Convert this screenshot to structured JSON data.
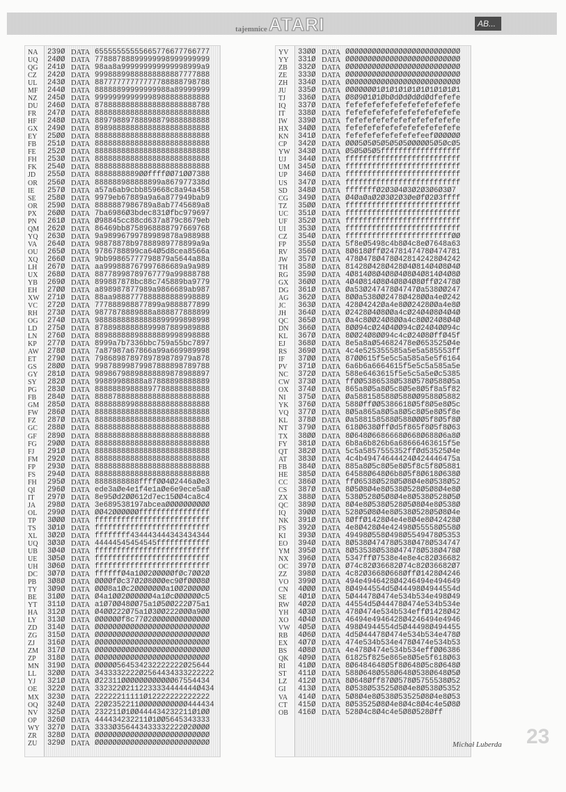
{
  "header": {
    "logo_small": "tajemnice",
    "logo_big": "ATARI",
    "badge": "AB..."
  },
  "keyword": "DATA",
  "footer": {
    "author": "Michał Luberda",
    "page_number": "23"
  },
  "listing": {
    "left": [
      [
        "NA",
        "239Ø",
        "65555555555665776677766777"
      ],
      [
        "UQ",
        "24ØØ",
        "77888788899999998999999999"
      ],
      [
        "QG",
        "241Ø",
        "98aa8a999999999999998999a9"
      ],
      [
        "CZ",
        "242Ø",
        "99988899888888888887777888"
      ],
      [
        "UL",
        "243Ø",
        "88777777777777788888798788"
      ],
      [
        "MF",
        "244Ø",
        "88888899999999988a89999999"
      ],
      [
        "NZ",
        "245Ø",
        "99999999999998988888888888"
      ],
      [
        "DU",
        "246Ø",
        "87888888888888888888888788"
      ],
      [
        "FR",
        "247Ø",
        "88888888888888888888888888"
      ],
      [
        "HF",
        "248Ø",
        "88979889788898879888888888"
      ],
      [
        "GX",
        "249Ø",
        "89898888888888888888888888"
      ],
      [
        "EY",
        "25ØØ",
        "88888888888888888888888888"
      ],
      [
        "FB",
        "251Ø",
        "88888888888888888888888888"
      ],
      [
        "FE",
        "252Ø",
        "88888888888888888888888888"
      ],
      [
        "FH",
        "253Ø",
        "88888888888888888888888888"
      ],
      [
        "FK",
        "254Ø",
        "88888888888888888888888888"
      ],
      [
        "JD",
        "255Ø",
        "8888888889ØØffffØØ71ØØ7388"
      ],
      [
        "OR",
        "256Ø",
        "888888988888899a867977338d"
      ],
      [
        "IE",
        "257Ø",
        "a57a6ab9cbb859668c8a94a458"
      ],
      [
        "SE",
        "258Ø",
        "9979eb67889a9a6a877949bab9"
      ],
      [
        "OR",
        "259Ø",
        "8888887986789a8ab7745689a8"
      ],
      [
        "PX",
        "26ØØ",
        "7ba6986Ø3bdec831Øfbc979697"
      ],
      [
        "PN",
        "261Ø",
        "Ø98845cc88cd637a879c8679eb"
      ],
      [
        "QM",
        "262Ø",
        "86469bb8758968888797669768"
      ],
      [
        "YQ",
        "263Ø",
        "9a98996799789989878a988988"
      ],
      [
        "VA",
        "264Ø",
        "98878878b97888989778899a9a"
      ],
      [
        "OU",
        "265Ø",
        "9786788899ca64Ø5d8cea8566a"
      ],
      [
        "XQ",
        "266Ø",
        "9bb99865777798879a5644a88a"
      ],
      [
        "LH",
        "267Ø",
        "aa999888767997686689a9a989"
      ],
      [
        "UX",
        "268Ø",
        "88778998789767779a99888788"
      ],
      [
        "YB",
        "269Ø",
        "899887878bc88c745889ba9779"
      ],
      [
        "EH",
        "27ØØ",
        "a898987877989a9866689ab987"
      ],
      [
        "XW",
        "271Ø",
        "88aa9888777888888888998889"
      ],
      [
        "VC",
        "272Ø",
        "777888988877899a9888877899"
      ],
      [
        "RH",
        "273Ø",
        "9877878889888a888877888899"
      ],
      [
        "OG",
        "274Ø",
        "98888888888888899999898998"
      ],
      [
        "LD",
        "275Ø",
        "87889888888899987889989888"
      ],
      [
        "LN",
        "276Ø",
        "88988888898888889998998888"
      ],
      [
        "KP",
        "277Ø",
        "8999a7b7336bbc759a55bc7897"
      ],
      [
        "AW",
        "278Ø",
        "7a87987a67866a99a669989998"
      ],
      [
        "ET",
        "279Ø",
        "7986898789789789878979a878"
      ],
      [
        "GS",
        "28ØØ",
        "99878899879987888898789788"
      ],
      [
        "GY",
        "281Ø",
        "98986798898888889878988897"
      ],
      [
        "SY",
        "282Ø",
        "99889988888a87888898888889"
      ],
      [
        "PG",
        "283Ø",
        "88888889888897788888888888"
      ],
      [
        "FB",
        "284Ø",
        "88887888888888888888888888"
      ],
      [
        "GM",
        "285Ø",
        "88888889988888888888888888"
      ],
      [
        "FW",
        "286Ø",
        "88888888888888888888888888"
      ],
      [
        "FZ",
        "287Ø",
        "88888888888888888888888888"
      ],
      [
        "GC",
        "288Ø",
        "88888888888888888888888888"
      ],
      [
        "GF",
        "289Ø",
        "88888888888888888888888888"
      ],
      [
        "FG",
        "29ØØ",
        "88888888888888888888888888"
      ],
      [
        "FJ",
        "291Ø",
        "88888888888888888888888888"
      ],
      [
        "FM",
        "292Ø",
        "88888888888888888888888888"
      ],
      [
        "FP",
        "293Ø",
        "88888888888888888888888888"
      ],
      [
        "FS",
        "294Ø",
        "88888888888888888888888888"
      ],
      [
        "FH",
        "295Ø",
        "8888888888ffffØØ4Ø2446aØe3"
      ],
      [
        "QI",
        "296Ø",
        "ede3aØe4e1f4e1aØe6e9ece5aØ"
      ],
      [
        "IT",
        "297Ø",
        "8e95Ød2ØØ612d7ec15ØØ4ca8c4"
      ],
      [
        "JA",
        "298Ø",
        "3e689538197abceaØØØØØØØØØØ"
      ],
      [
        "OL",
        "299Ø",
        "ØØ42ØØØØØØffffffffffffffff"
      ],
      [
        "TP",
        "3ØØØ",
        "ffffffffffffffffffffffffff"
      ],
      [
        "TS",
        "3Ø1Ø",
        "ffffffffffffffffffffffffff"
      ],
      [
        "XL",
        "3Ø2Ø",
        "ffffffff434443444343434344"
      ],
      [
        "UQ",
        "3Ø3Ø",
        "44444545454545ffffffffffff"
      ],
      [
        "UB",
        "3Ø4Ø",
        "ffffffffffffffffffffffffff"
      ],
      [
        "UE",
        "3Ø5Ø",
        "ffffffffffffffffffffffffff"
      ],
      [
        "UH",
        "3Ø6Ø",
        "ffffffffffffffffffffffffff"
      ],
      [
        "DC",
        "3Ø7Ø",
        "ffffffØ4a1ØØ2ØØØØØfØc7ØØ2Ø"
      ],
      [
        "PB",
        "3Ø8Ø",
        "ØØØØfØc37Ø2Ø8ØØØec9ØfØØØ8Ø"
      ],
      [
        "TY",
        "3Ø9Ø",
        "ØØØ8a1Øc2ØØØØØØØa1ØØ2ØØØØØ"
      ],
      [
        "BE",
        "31ØØ",
        "Ø4a1ØØ2ØØØØØØ4a1ØcØØØØØØc5"
      ],
      [
        "YT",
        "311Ø",
        "a1Ø7ØØ48ØØ75a1Ø5ØØ222Ø75a1"
      ],
      [
        "HA",
        "312Ø",
        "Ø4ØØ222Ø75a1Ø3ØØ222ØØØa9ØØ"
      ],
      [
        "LY",
        "313Ø",
        "ØØØØØØf8c77Ø2ØØØØØØØØØØØØØ"
      ],
      [
        "ZD",
        "314Ø",
        "ØØØØØØØØØØØØØØØØØØØØØØØØØØ"
      ],
      [
        "ZG",
        "315Ø",
        "ØØØØØØØØØØØØØØØØØØØØØØØØØØ"
      ],
      [
        "ZJ",
        "316Ø",
        "ØØØØØØØØØØØØØØØØØØØØØØØØØØ"
      ],
      [
        "ZM",
        "317Ø",
        "ØØØØØØØØØØØØØØØØØØØØØØØØØØ"
      ],
      [
        "ZP",
        "318Ø",
        "ØØØØØØØØØØØØØØØØØØØØØØØØØØ"
      ],
      [
        "MN",
        "319Ø",
        "ØØØØØ564534232222222Ø25644"
      ],
      [
        "LL",
        "32ØØ",
        "3433332222Ø2564434333222222"
      ],
      [
        "YJ",
        "321Ø",
        "Ø22311ØØØØØØØØØØØØ67554434"
      ],
      [
        "OE",
        "322Ø",
        "332322Ø2112233334444444Ø434"
      ],
      [
        "MX",
        "323Ø",
        "22222211111Ø12222222222222"
      ],
      [
        "OQ",
        "324Ø",
        "22Ø2352211ØØØØØØØØØØØ444434"
      ],
      [
        "NV",
        "325Ø",
        "232211Ø1ØØ444434232211Ø1ØØ"
      ],
      [
        "OP",
        "326Ø",
        "444434232211Ø1ØØ5645343333"
      ],
      [
        "WY",
        "327Ø",
        "3333Ø356443433332222Ø2ØØØØ"
      ],
      [
        "ZR",
        "328Ø",
        "ØØØØØØØØØØØØØØØØØØØØØØØØØØ"
      ],
      [
        "ZU",
        "329Ø",
        "ØØØØØØØØØØØØØØØØØØØØØØØØØØ"
      ]
    ],
    "right": [
      [
        "YV",
        "33ØØ",
        "ØØØØØØØØØØØØØØØØØØØØØØØØØØ"
      ],
      [
        "YY",
        "331Ø",
        "ØØØØØØØØØØØØØØØØØØØØØØØØØØ"
      ],
      [
        "ZB",
        "332Ø",
        "ØØØØØØØØØØØØØØØØØØØØØØØØØØ"
      ],
      [
        "ZE",
        "333Ø",
        "ØØØØØØØØØØØØØØØØØØØØØØØØØØ"
      ],
      [
        "ZH",
        "334Ø",
        "ØØØØØØØØØØØØØØØØØØØØØØØØØØ"
      ],
      [
        "JU",
        "335Ø",
        "ØØØØØØØ1Ø1Ø1Ø1Ø1Ø1Ø1Ø1Ø1Ø1"
      ],
      [
        "TJ",
        "336Ø",
        "Ø8Ø9Ø1Ø1ØbØdØdØdØdØdfefefe"
      ],
      [
        "IQ",
        "337Ø",
        "fefefefefefefefefefefefefe"
      ],
      [
        "IT",
        "338Ø",
        "fefefefefefefefefefefefefe"
      ],
      [
        "IW",
        "339Ø",
        "fefefefefefefefefefefefefe"
      ],
      [
        "HX",
        "34ØØ",
        "fefefefefefefefefefefefefe"
      ],
      [
        "KN",
        "341Ø",
        "fefefefefefefefefeefØØØØØØ"
      ],
      [
        "CP",
        "342Ø",
        "ØØØ5Ø5Ø5Ø5Ø5Ø5ØØØØØ5Ø5ØcØ5"
      ],
      [
        "YW",
        "343Ø",
        "Ø5Ø5Ø5Ø5ffffffffffffffffff"
      ],
      [
        "UJ",
        "344Ø",
        "ffffffffffffffffffffffffff"
      ],
      [
        "UM",
        "345Ø",
        "ffffffffffffffffffffffffff"
      ],
      [
        "UP",
        "346Ø",
        "ffffffffffffffffffffffffff"
      ],
      [
        "US",
        "347Ø",
        "ffffffffffffffffffffffffff"
      ],
      [
        "SD",
        "348Ø",
        "fffffffØ2Ø3Ø4Ø3Ø2Ø3Ø6Ø3Ø7"
      ],
      [
        "CG",
        "349Ø",
        "Ø4ØaØaØ2Ø3Ø2Ø3ØeØfØ2Ø3ffff"
      ],
      [
        "TZ",
        "35ØØ",
        "ffffffffffffffffffffffffff"
      ],
      [
        "UC",
        "351Ø",
        "ffffffffffffffffffffffffff"
      ],
      [
        "UF",
        "352Ø",
        "ffffffffffffffffffffffffff"
      ],
      [
        "UI",
        "353Ø",
        "ffffffffffffffffffffffffff"
      ],
      [
        "CZ",
        "354Ø",
        "ffffffffffffffffffffffffØØ"
      ],
      [
        "FP",
        "355Ø",
        "5f8eØ5498c4b8Ø4c8eØ7648a63"
      ],
      [
        "RV",
        "356Ø",
        "8Ø618ØffØ2478147478Ø474781"
      ],
      [
        "JW",
        "357Ø",
        "478Ø478Ø478Ø428142428Ø4242"
      ],
      [
        "TH",
        "358Ø",
        "81428Ø428Ø428Ø4Ø814Ø4Ø8Ø4Ø"
      ],
      [
        "RG",
        "359Ø",
        "4Ø814Ø8Ø4Ø8Ø4Ø8Ø4Ø814Ø4Ø8Ø"
      ],
      [
        "GX",
        "36ØØ",
        "4Ø4Ø814Ø8Ø4Ø8Ø4Ø8ØffØ2478Ø"
      ],
      [
        "DG",
        "361Ø",
        "Øa53Ø247478Ø4747Øa538ØØ247"
      ],
      [
        "AG",
        "362Ø",
        "8ØØa538ØØ2478Ø428ØØa4eØ242"
      ],
      [
        "JC",
        "363Ø",
        "428Ø4242Øa4e8ØØ2428ØØa4e8Ø"
      ],
      [
        "JH",
        "364Ø",
        "Ø2428Ø4Ø8ØØa4cØ24Ø4Ø8Ø4Ø4Ø"
      ],
      [
        "QC",
        "365Ø",
        "Øa4c8ØØ24Ø8ØØa4c8ØØ24Ø8Ø4Ø"
      ],
      [
        "DN",
        "366Ø",
        "8ØØ94cØ24Ø4ØØ94cØ24Ø4ØØ94c"
      ],
      [
        "KL",
        "367Ø",
        "8ØØ24Ø8ØØ94c4cØ24Ø8ØffØ45f"
      ],
      [
        "EJ",
        "368Ø",
        "8e5a8aØ54682478eØ653525Ø4e"
      ],
      [
        "RS",
        "369Ø",
        "4c4e525355585a5e5a585553ff"
      ],
      [
        "IF",
        "37ØØ",
        "87ØØ615f5e5c5a585a5e5f6164"
      ],
      [
        "PV",
        "371Ø",
        "6a6b6a6664615f5e5c5a585a5e"
      ],
      [
        "NC",
        "372Ø",
        "588e6463615f5e5c5a5eØc5385"
      ],
      [
        "CW",
        "373Ø",
        "ffØØ5386538Ø538Ø578Ø588Ø5a"
      ],
      [
        "OX",
        "374Ø",
        "865a8Ø5a8Ø5c8Ø5e8Ø5f8a5f82"
      ],
      [
        "NI",
        "375Ø",
        "Øa588158588Ø588ØØ9588Ø5882"
      ],
      [
        "YK",
        "376Ø",
        "588ØffØØ5386618Ø5f8Ø5e8Ø5c"
      ],
      [
        "VQ",
        "377Ø",
        "8Ø5a865a8Ø5a8Ø5c8Ø5e8Ø5f8e"
      ],
      [
        "KL",
        "378Ø",
        "Øa588158588Ø588ØØØ5f8Ø5f8Ø"
      ],
      [
        "NT",
        "379Ø",
        "618Ø638ØffØd5f865f8Ø5f8Ø63"
      ],
      [
        "TX",
        "38ØØ",
        "8Ø648Ø6686668Ø668Ø688Ø6a8Ø"
      ],
      [
        "FY",
        "381Ø",
        "6b8a6b826b6a68666463615f5e"
      ],
      [
        "QT",
        "382Ø",
        "5c5a5857555352ffØd53525Ø4e"
      ],
      [
        "AT",
        "383Ø",
        "4c4b49474644424Ø424446475a"
      ],
      [
        "FB",
        "384Ø",
        "885a8Ø5c8Ø5e8Ø5f8c5f8Ø5881"
      ],
      [
        "HE",
        "385Ø",
        "64588Ø648Ø6b8Ø5f8Ø618Ø638Ø"
      ],
      [
        "CC",
        "386Ø",
        "ffØ6538Ø528Ø5Ø8Ø4e8Ø538Ø52"
      ],
      [
        "CS",
        "387Ø",
        "8Ø5Ø8Ø4e8Ø538Ø528Ø5Ø8Ø4e8Ø"
      ],
      [
        "ZX",
        "388Ø",
        "538Ø528Ø5Ø8Ø4e8Ø538Ø528Ø5Ø"
      ],
      [
        "QC",
        "389Ø",
        "8Ø4e8Ø538Ø528Ø5Ø8Ø4e8Ø538Ø"
      ],
      [
        "IQ",
        "39ØØ",
        "528Ø5Ø8Ø4e8Ø538Ø528Ø5Ø8Ø4e"
      ],
      [
        "NK",
        "391Ø",
        "8ØffØ1428Ø4e4e8Ø4e8Ø42428Ø"
      ],
      [
        "FS",
        "392Ø",
        "4e8Ø428Ø4e42498Ø55558Ø558Ø"
      ],
      [
        "KI",
        "393Ø",
        "49498Ø558Ø498Ø5549478Ø5353"
      ],
      [
        "EO",
        "394Ø",
        "8Ø538Ø47478Ø538Ø478Ø534747"
      ],
      [
        "YM",
        "395Ø",
        "8Ø53538Ø538Ø47478Ø538Ø478Ø"
      ],
      [
        "NX",
        "396Ø",
        "5347ffØ7538e4e8e4c82Ø36682"
      ],
      [
        "OC",
        "397Ø",
        "Ø74c82Ø36682Ø74c82Ø36682Ø7"
      ],
      [
        "ZZ",
        "398Ø",
        "4c82Ø3668Ø668ØffØ1428Ø4246"
      ],
      [
        "VO",
        "399Ø",
        "494e4946428Ø4246494e494649"
      ],
      [
        "CN",
        "4ØØØ",
        "8Ø4944554d5Ø44498Ø4944554d"
      ],
      [
        "SE",
        "4Ø1Ø",
        "5Ø44478Ø474e534b534e498Ø49"
      ],
      [
        "RW",
        "4Ø2Ø",
        "44554d5Ø44478Ø474e534b534e"
      ],
      [
        "YH",
        "4Ø3Ø",
        "478Ø474e534b534effØ1428Ø42"
      ],
      [
        "XO",
        "4Ø4Ø",
        "46494e4946428Ø4246494e4946"
      ],
      [
        "VW",
        "4Ø5Ø",
        "498Ø4944554d5Ø44498Ø494455"
      ],
      [
        "RB",
        "4Ø6Ø",
        "4d5Ø44478Ø474e534b534e478Ø"
      ],
      [
        "EX",
        "4Ø7Ø",
        "474e534b534e478Ø474e534b53"
      ],
      [
        "BS",
        "4Ø8Ø",
        "4e478Ø474e534b534effØØ6386"
      ],
      [
        "QK",
        "4Ø9Ø",
        "61825f825e865e8Ø5e5f618Ø63"
      ],
      [
        "RI",
        "41ØØ",
        "8Ø6484648Ø5f8Ø648Ø5c8Ø648Ø"
      ],
      [
        "ST",
        "411Ø",
        "588Ø648Ø558Ø648Ø538Ø648Ø5Ø"
      ],
      [
        "LZ",
        "412Ø",
        "8Ø648Øff87ØØ578Ø5755538Ø52"
      ],
      [
        "GI",
        "413Ø",
        "8Ø538Ø53525Ø8Ø4e8Ø538Ø5352"
      ],
      [
        "VA",
        "414Ø",
        "5Ø8Ø4e8Ø538Ø53525Ø8Ø4e8Ø53"
      ],
      [
        "CT",
        "415Ø",
        "8Ø53525Ø8Ø4e8Ø4c8Ø4c4e5Ø8Ø"
      ],
      [
        "OB",
        "416Ø",
        "528Ø4c8Ø4c4e5Ø8Ø528Øff"
      ]
    ]
  }
}
